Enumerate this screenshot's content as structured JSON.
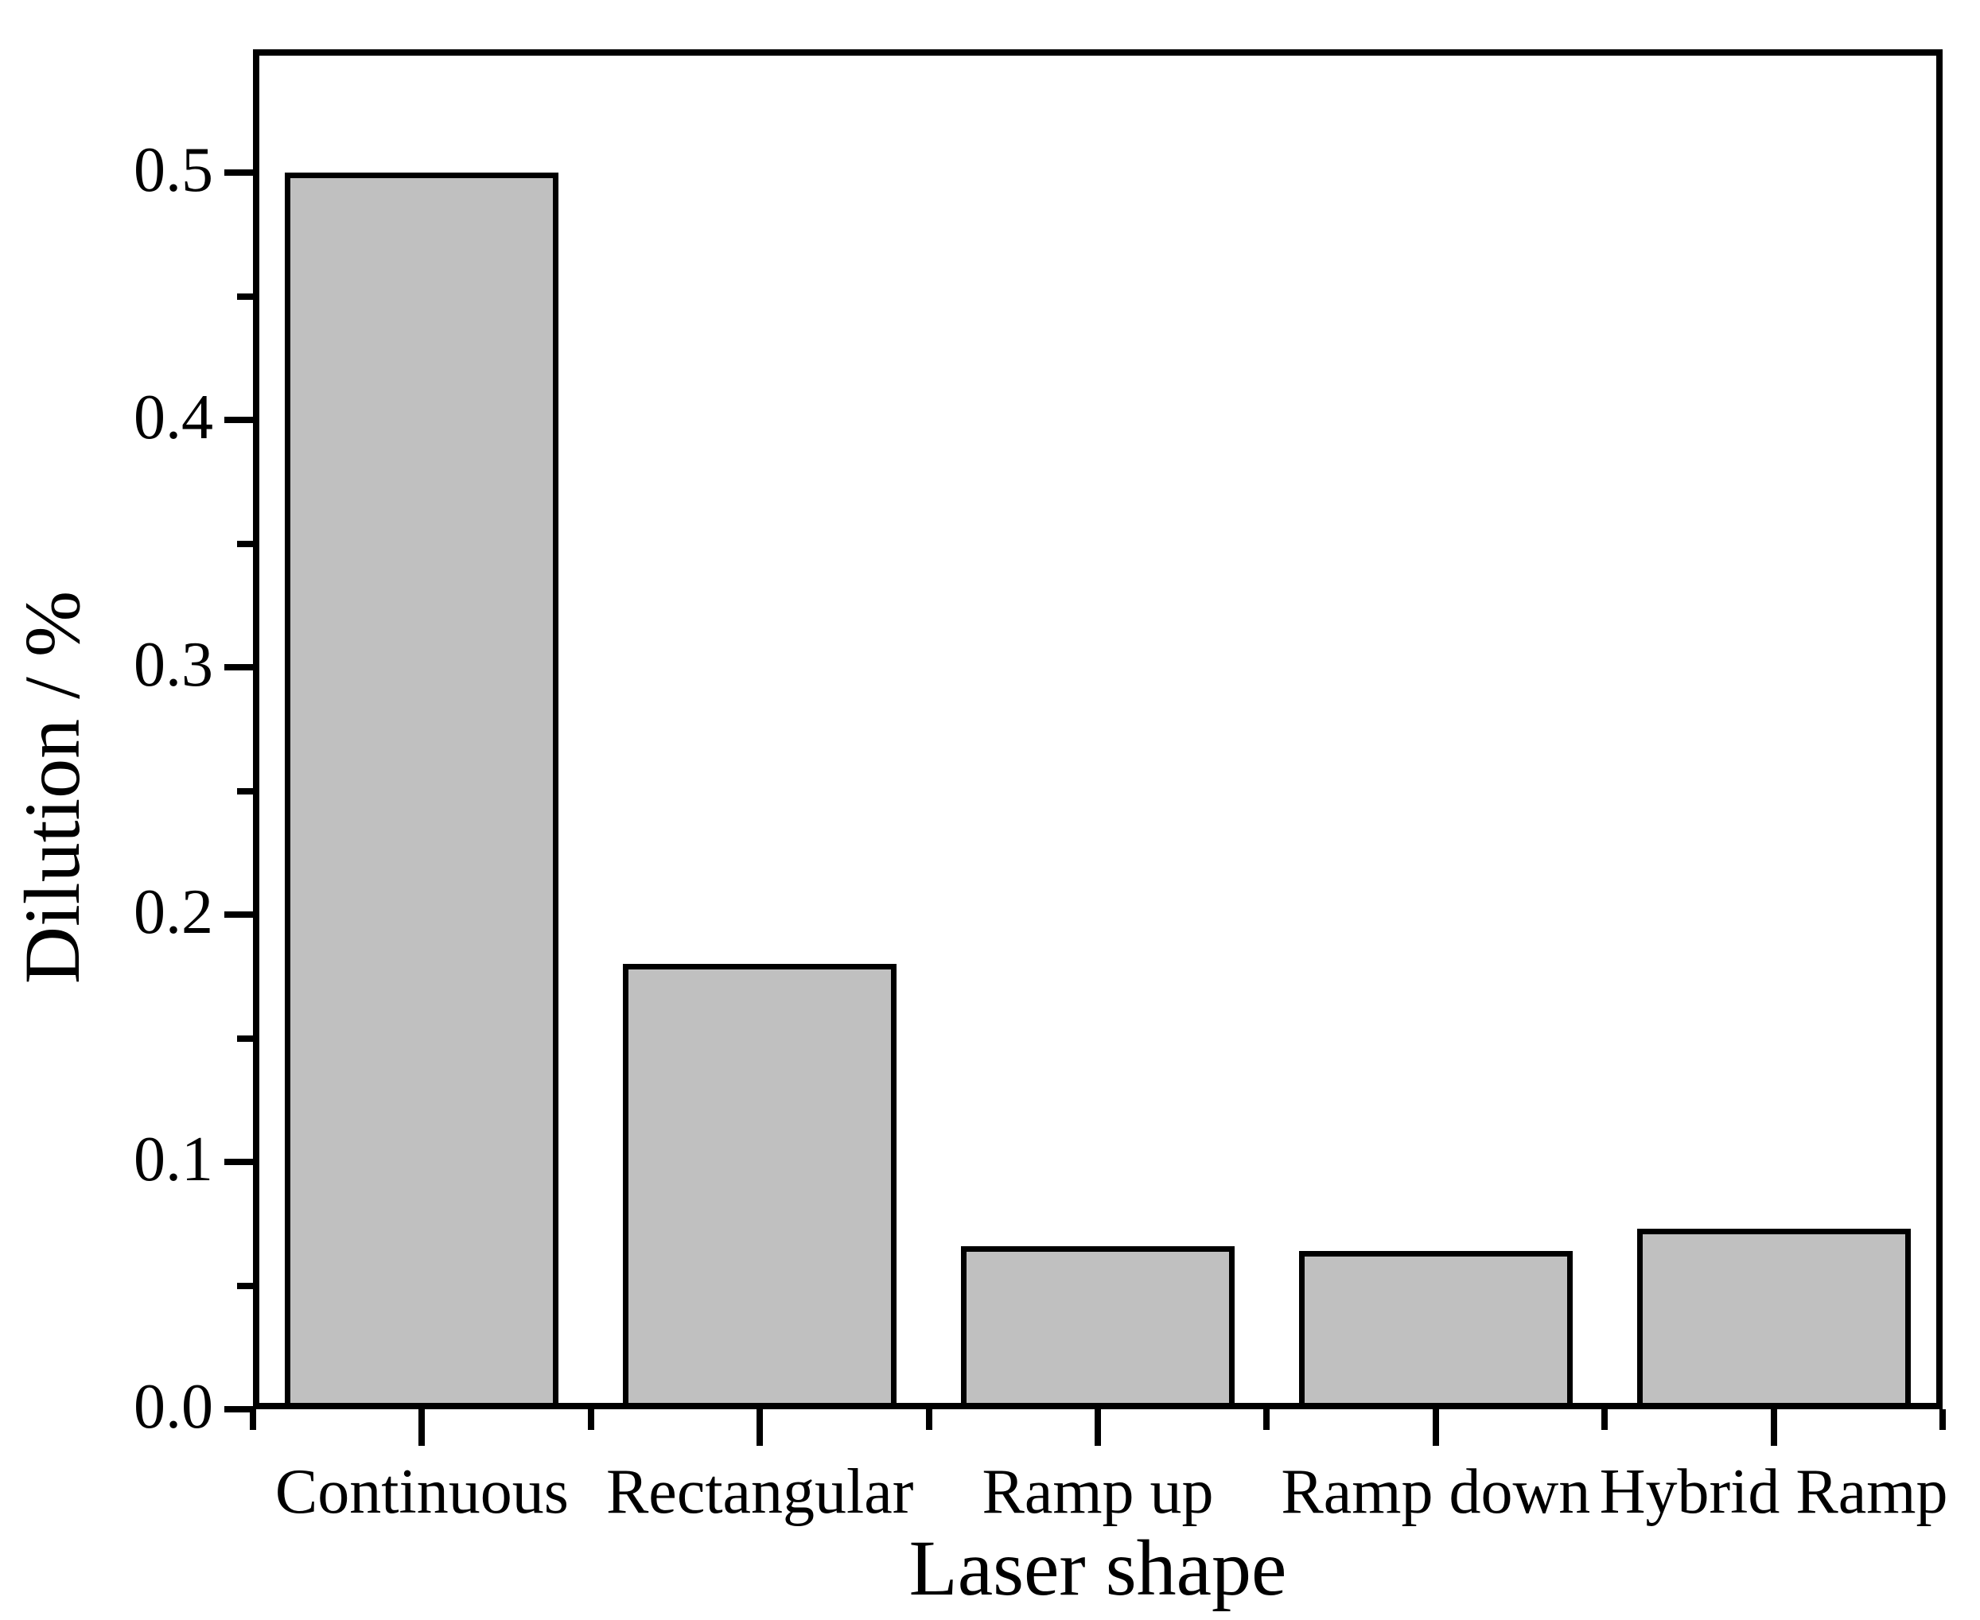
{
  "figure": {
    "background": "#ffffff",
    "text_color": "#000000"
  },
  "chart_data": {
    "type": "bar",
    "title": "",
    "xlabel": "Laser shape",
    "ylabel": "Dilution / %",
    "categories": [
      "Continuous",
      "Rectangular",
      "Ramp up",
      "Ramp down",
      "Hybrid Ramp"
    ],
    "values": [
      0.5,
      0.18,
      0.066,
      0.064,
      0.073
    ],
    "ylim": [
      0,
      0.55
    ],
    "ytick_labels": [
      "0.0",
      "0.1",
      "0.2",
      "0.3",
      "0.4",
      "0.5"
    ],
    "ytick_values": [
      0.0,
      0.1,
      0.2,
      0.3,
      0.4,
      0.5
    ],
    "ytick_minor_values": [
      0.05,
      0.15,
      0.25,
      0.35,
      0.45
    ],
    "grid": false,
    "legend": null,
    "bar_fill": "#c0c0c0",
    "bar_edge": "#000000",
    "bar_width_fraction": 0.81
  }
}
